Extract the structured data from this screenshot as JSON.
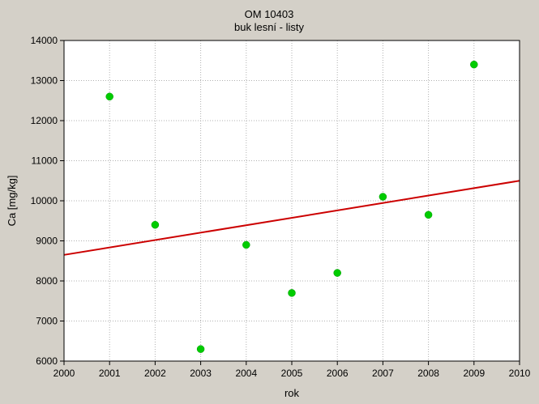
{
  "chart_data": {
    "type": "scatter",
    "title": "OM 10403",
    "subtitle": "buk lesní - listy",
    "xlabel": "rok",
    "ylabel": "Ca [mg/kg]",
    "xlim": [
      2000,
      2010
    ],
    "ylim": [
      6000,
      14000
    ],
    "x_ticks": [
      "2000",
      "2001",
      "2002",
      "2003",
      "2004",
      "2005",
      "2006",
      "2007",
      "2008",
      "2009",
      "2010"
    ],
    "y_ticks": [
      "6000",
      "7000",
      "8000",
      "9000",
      "10000",
      "11000",
      "12000",
      "13000",
      "14000"
    ],
    "grid": true,
    "points": [
      {
        "x": 2001,
        "y": 12600
      },
      {
        "x": 2002,
        "y": 9400
      },
      {
        "x": 2003,
        "y": 6300
      },
      {
        "x": 2004,
        "y": 8900
      },
      {
        "x": 2005,
        "y": 7700
      },
      {
        "x": 2006,
        "y": 8200
      },
      {
        "x": 2007,
        "y": 10100
      },
      {
        "x": 2008,
        "y": 9650
      },
      {
        "x": 2009,
        "y": 13400
      }
    ],
    "trendline": {
      "x": [
        2000,
        2010
      ],
      "y": [
        8650,
        10500
      ]
    },
    "colors": {
      "points": "#00cc00",
      "trendline": "#cc0000",
      "grid": "#b0b0b0",
      "plot_background": "#ffffff",
      "background": "#d4d0c8"
    }
  }
}
